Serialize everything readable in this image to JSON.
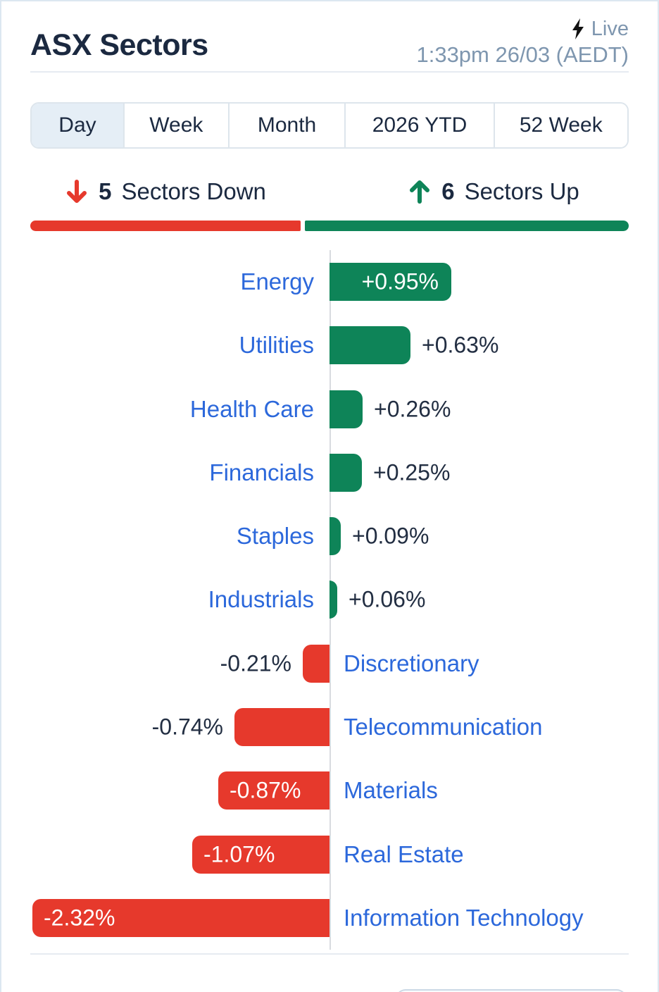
{
  "header": {
    "title": "ASX Sectors",
    "live_label": "Live",
    "timestamp": "1:33pm 26/03 (AEDT)"
  },
  "tabs": [
    {
      "label": "Day",
      "active": true
    },
    {
      "label": "Week",
      "active": false
    },
    {
      "label": "Month",
      "active": false
    },
    {
      "label": "2026 YTD",
      "active": false
    },
    {
      "label": "52 Week",
      "active": false
    }
  ],
  "summary": {
    "down_count": "5",
    "down_label": "Sectors Down",
    "up_count": "6",
    "up_label": "Sectors Up"
  },
  "chart_data": {
    "type": "bar",
    "orientation": "horizontal",
    "unit": "%",
    "title": "ASX Sectors — Day",
    "categories": [
      "Energy",
      "Utilities",
      "Health Care",
      "Financials",
      "Staples",
      "Industrials",
      "Discretionary",
      "Telecommunication",
      "Materials",
      "Real Estate",
      "Information Technology"
    ],
    "values": [
      0.95,
      0.63,
      0.26,
      0.25,
      0.09,
      0.06,
      -0.21,
      -0.74,
      -0.87,
      -1.07,
      -2.32
    ],
    "labels": [
      "+0.95%",
      "+0.63%",
      "+0.26%",
      "+0.25%",
      "+0.09%",
      "+0.06%",
      "-0.21%",
      "-0.74%",
      "-0.87%",
      "-1.07%",
      "-2.32%"
    ],
    "xlim": [
      -2.35,
      2.35
    ],
    "grid": false,
    "legend": false,
    "colors": {
      "up": "#0E8458",
      "down": "#E6392C",
      "category_label": "#2C68DB",
      "value_text": "#222E42",
      "value_text_inside": "#FFFFFF"
    }
  },
  "icons": {
    "live_bolt": "lightning-bolt",
    "down_arrow": "arrow-down",
    "up_arrow": "arrow-up"
  }
}
